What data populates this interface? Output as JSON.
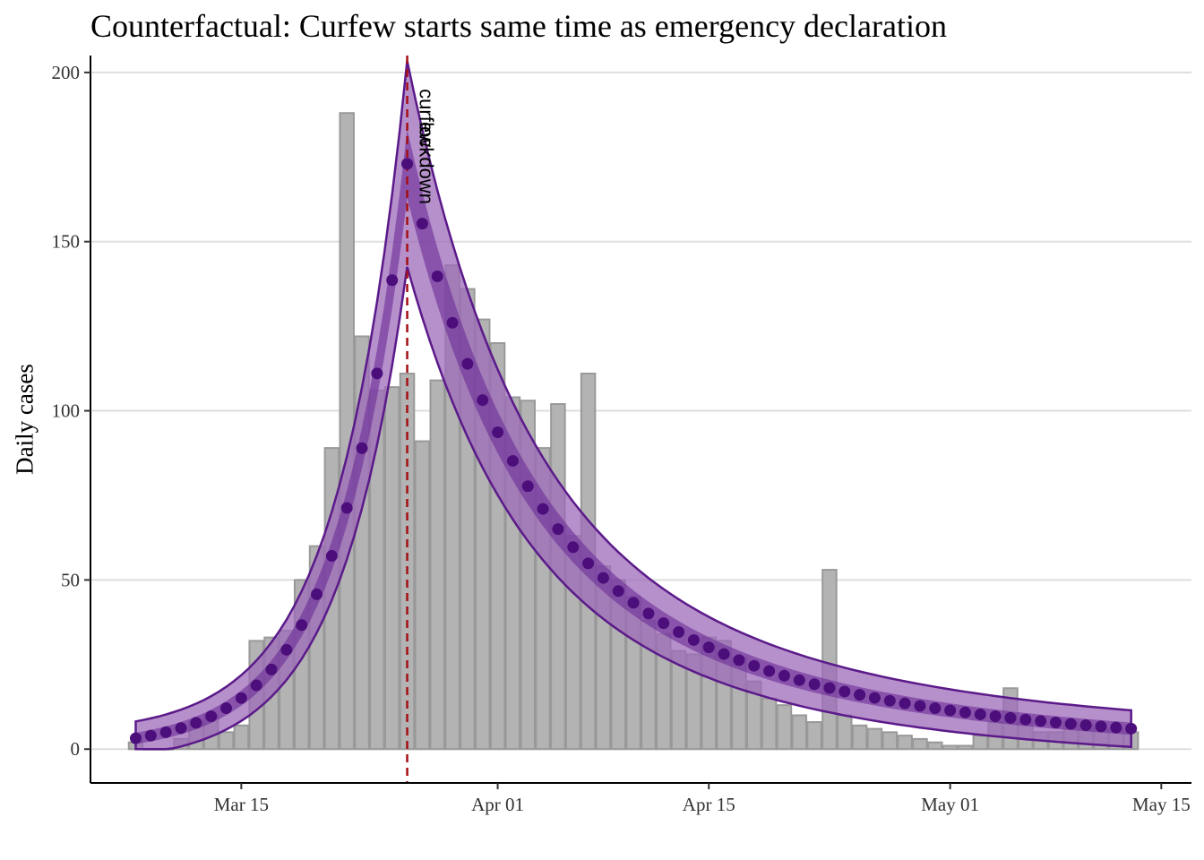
{
  "chart_data": {
    "type": "bar",
    "title": "Counterfactual: Curfew starts same time as emergency declaration",
    "xlabel": "",
    "ylabel": "Daily cases",
    "x_start_date": "2020-03-08",
    "ylim": [
      -10,
      205
    ],
    "xlim": [
      "2020-03-05",
      "2020-05-17"
    ],
    "y_ticks": [
      0,
      50,
      100,
      150,
      200
    ],
    "x_ticks": [
      {
        "date": "2020-03-15",
        "label": "Mar 15"
      },
      {
        "date": "2020-04-01",
        "label": "Apr 01"
      },
      {
        "date": "2020-04-15",
        "label": "Apr 15"
      },
      {
        "date": "2020-05-01",
        "label": "May 01"
      },
      {
        "date": "2020-05-15",
        "label": "May 15"
      }
    ],
    "grid": "horizontal major",
    "observed_cases": {
      "start_date": "2020-03-08",
      "values": [
        2,
        0,
        0,
        3,
        8,
        10,
        5,
        7,
        32,
        33,
        35,
        50,
        60,
        89,
        188,
        122,
        106,
        107,
        111,
        91,
        109,
        143,
        136,
        127,
        120,
        104,
        103,
        89,
        102,
        63,
        111,
        54,
        50,
        45,
        38,
        34,
        29,
        28,
        33,
        32,
        27,
        20,
        15,
        13,
        10,
        8,
        53,
        10,
        7,
        6,
        5,
        4,
        3,
        2,
        1,
        1,
        4,
        8,
        18,
        8,
        5,
        5,
        8,
        7,
        6,
        6,
        5
      ]
    },
    "model_fit": {
      "start_date": "2020-03-08",
      "peak_date": "2020-03-26",
      "peak_value": 173,
      "end_date": "2020-05-13",
      "end_value": 2.5,
      "color": "#4B0E7A"
    },
    "event_line": {
      "date": "2020-03-26",
      "labels": [
        "curfew",
        "lockdown"
      ],
      "color": "#A50F15"
    },
    "colors": {
      "bar_fill": "#B3B3B3",
      "bar_edge": "#999999",
      "band_fill": "#9D6BB8",
      "band_edge": "#5B1A8A",
      "points": "#4B0E7A"
    }
  }
}
